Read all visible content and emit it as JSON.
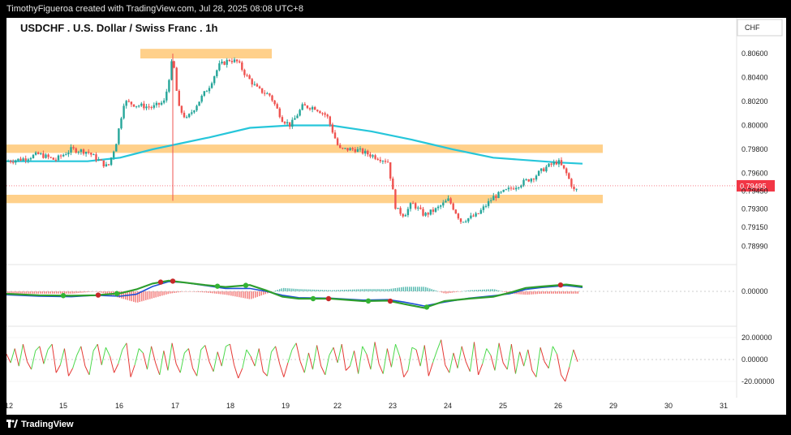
{
  "header": {
    "credit": "TimothyFigueroa created with TradingView.com, Jul 28, 2025 08:08 UTC+8"
  },
  "footer": {
    "brand": "TradingView"
  },
  "colors": {
    "up": "#26a69a",
    "down": "#ef5350",
    "zone": "#ffd08a",
    "ma": "#26c6da",
    "macd_fast": "#1e4fd6",
    "macd_slow": "#2e9e2e",
    "macd_slow_down": "#b71c1c",
    "hist_up": "#26a69a",
    "hist_down": "#ef5350",
    "osc_up": "#4cd94c",
    "osc_down": "#e53935",
    "price_label": "#f23645"
  },
  "chart_data": {
    "type": "candlestick",
    "title": "USDCHF . U.S. Dollar / Swiss Franc . 1h",
    "currency": "CHF",
    "last_price": "0.79495",
    "x_tick_labels": [
      "12",
      "15",
      "16",
      "17",
      "18",
      "19",
      "22",
      "23",
      "24",
      "25",
      "26",
      "29",
      "30",
      "31"
    ],
    "price_axis": {
      "tick_labels": [
        "0.80600",
        "0.80400",
        "0.80200",
        "0.80000",
        "0.79800",
        "0.79600",
        "0.79450",
        "0.79300",
        "0.79150",
        "0.78990"
      ],
      "ylim": [
        0.7885,
        0.8075
      ]
    },
    "support_resistance_zones": [
      {
        "low": 0.8056,
        "high": 0.8064
      },
      {
        "low": 0.7977,
        "high": 0.7984
      },
      {
        "low": 0.7935,
        "high": 0.7942
      }
    ],
    "moving_average_path": [
      [
        0,
        0.797
      ],
      [
        100,
        0.797
      ],
      [
        140,
        0.7973
      ],
      [
        180,
        0.798
      ],
      [
        250,
        0.799
      ],
      [
        300,
        0.7998
      ],
      [
        350,
        0.8
      ],
      [
        400,
        0.8
      ],
      [
        450,
        0.7995
      ],
      [
        500,
        0.7988
      ],
      [
        550,
        0.798
      ],
      [
        600,
        0.7973
      ],
      [
        680,
        0.7969
      ],
      [
        710,
        0.7968
      ]
    ],
    "price_path": [
      [
        0,
        0.797
      ],
      [
        20,
        0.7972
      ],
      [
        40,
        0.7976
      ],
      [
        60,
        0.7971
      ],
      [
        80,
        0.798
      ],
      [
        100,
        0.7978
      ],
      [
        115,
        0.797
      ],
      [
        125,
        0.7965
      ],
      [
        135,
        0.7985
      ],
      [
        145,
        0.802
      ],
      [
        160,
        0.8017
      ],
      [
        180,
        0.8015
      ],
      [
        195,
        0.802
      ],
      [
        205,
        0.8057
      ],
      [
        212,
        0.8015
      ],
      [
        222,
        0.8005
      ],
      [
        235,
        0.8018
      ],
      [
        250,
        0.8033
      ],
      [
        262,
        0.805
      ],
      [
        275,
        0.8055
      ],
      [
        285,
        0.8053
      ],
      [
        295,
        0.8042
      ],
      [
        310,
        0.803
      ],
      [
        325,
        0.8025
      ],
      [
        340,
        0.8005
      ],
      [
        350,
        0.8
      ],
      [
        365,
        0.8016
      ],
      [
        380,
        0.8015
      ],
      [
        395,
        0.8008
      ],
      [
        410,
        0.798
      ],
      [
        430,
        0.798
      ],
      [
        450,
        0.7975
      ],
      [
        470,
        0.797
      ],
      [
        480,
        0.793
      ],
      [
        490,
        0.7925
      ],
      [
        500,
        0.7935
      ],
      [
        515,
        0.7925
      ],
      [
        530,
        0.793
      ],
      [
        545,
        0.7938
      ],
      [
        560,
        0.792
      ],
      [
        580,
        0.7925
      ],
      [
        600,
        0.794
      ],
      [
        615,
        0.7945
      ],
      [
        630,
        0.795
      ],
      [
        650,
        0.7957
      ],
      [
        665,
        0.7965
      ],
      [
        680,
        0.797
      ],
      [
        690,
        0.796
      ],
      [
        700,
        0.7945
      ],
      [
        710,
        0.7949
      ]
    ],
    "macd": {
      "y_tick_labels": [
        "0.00000"
      ],
      "fast_path": [
        [
          0,
          7
        ],
        [
          40,
          10
        ],
        [
          80,
          11
        ],
        [
          110,
          8
        ],
        [
          140,
          10
        ],
        [
          160,
          6
        ],
        [
          180,
          -10
        ],
        [
          200,
          -20
        ],
        [
          220,
          -18
        ],
        [
          245,
          -12
        ],
        [
          270,
          -6
        ],
        [
          300,
          -6
        ],
        [
          320,
          0
        ],
        [
          340,
          8
        ],
        [
          360,
          13
        ],
        [
          400,
          14
        ],
        [
          440,
          18
        ],
        [
          470,
          17
        ],
        [
          490,
          22
        ],
        [
          515,
          30
        ],
        [
          540,
          22
        ],
        [
          570,
          14
        ],
        [
          600,
          9
        ],
        [
          620,
          5
        ],
        [
          640,
          -4
        ],
        [
          660,
          -8
        ],
        [
          690,
          -12
        ],
        [
          710,
          -8
        ]
      ],
      "slow_path": [
        [
          0,
          5
        ],
        [
          40,
          8
        ],
        [
          80,
          9
        ],
        [
          110,
          8
        ],
        [
          140,
          4
        ],
        [
          160,
          -4
        ],
        [
          180,
          -16
        ],
        [
          200,
          -22
        ],
        [
          220,
          -18
        ],
        [
          245,
          -13
        ],
        [
          270,
          -9
        ],
        [
          300,
          -13
        ],
        [
          320,
          -2
        ],
        [
          340,
          11
        ],
        [
          360,
          15
        ],
        [
          400,
          15
        ],
        [
          440,
          20
        ],
        [
          470,
          19
        ],
        [
          490,
          26
        ],
        [
          515,
          34
        ],
        [
          540,
          20
        ],
        [
          570,
          15
        ],
        [
          600,
          11
        ],
        [
          620,
          3
        ],
        [
          640,
          -7
        ],
        [
          660,
          -10
        ],
        [
          690,
          -14
        ],
        [
          710,
          -10
        ]
      ],
      "cross_points": [
        {
          "x": 70,
          "color": "up"
        },
        {
          "x": 113,
          "color": "down"
        },
        {
          "x": 136,
          "color": "up"
        },
        {
          "x": 190,
          "color": "down"
        },
        {
          "x": 205,
          "color": "down"
        },
        {
          "x": 260,
          "color": "up"
        },
        {
          "x": 295,
          "color": "up"
        },
        {
          "x": 378,
          "color": "up"
        },
        {
          "x": 397,
          "color": "down"
        },
        {
          "x": 446,
          "color": "up"
        },
        {
          "x": 473,
          "color": "down"
        },
        {
          "x": 518,
          "color": "up"
        },
        {
          "x": 683,
          "color": "down"
        }
      ]
    },
    "oscillator": {
      "y_tick_labels": [
        "20.00000",
        "0.00000",
        "-20.00000"
      ],
      "ylim": [
        -26,
        26
      ],
      "values": [
        5,
        -3,
        10,
        -6,
        14,
        -2,
        -9,
        8,
        12,
        -4,
        9,
        14,
        -12,
        -5,
        10,
        -15,
        -8,
        4,
        12,
        -6,
        -14,
        8,
        14,
        -5,
        11,
        3,
        -12,
        -4,
        9,
        15,
        -16,
        -5,
        10,
        6,
        -9,
        12,
        -3,
        -14,
        8,
        -10,
        15,
        -4,
        -12,
        6,
        10,
        -8,
        -15,
        9,
        13,
        -2,
        -11,
        7,
        -6,
        12,
        14,
        -5,
        -17,
        -8,
        9,
        3,
        -6,
        10,
        -11,
        -15,
        7,
        12,
        -4,
        -16,
        -3,
        9,
        15,
        -2,
        -12,
        6,
        -9,
        13,
        -6,
        -14,
        4,
        11,
        -3,
        14,
        -10,
        -6,
        8,
        -13,
        12,
        5,
        -9,
        16,
        -4,
        -13,
        10,
        -7,
        14,
        3,
        -16,
        -10,
        11,
        9,
        -6,
        13,
        -15,
        -3,
        8,
        18,
        -5,
        -12,
        6,
        -8,
        12,
        -2,
        -11,
        16,
        -14,
        -4,
        10,
        4,
        -10,
        15,
        -3,
        -9,
        14,
        -13,
        7,
        -6,
        9,
        -10,
        -16,
        11,
        -2,
        -8,
        12,
        5,
        -14,
        -20,
        -7,
        9,
        -2
      ]
    }
  }
}
